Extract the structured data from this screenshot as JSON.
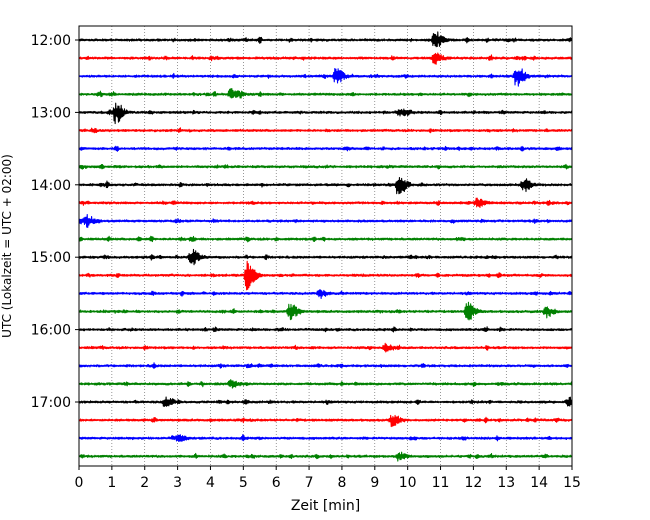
{
  "chart_data": {
    "type": "line",
    "title": "",
    "xlabel": "Zeit  [min]",
    "ylabel": "UTC (Lokalzeit = UTC + 02:00)",
    "xlim": [
      0,
      15
    ],
    "x_ticks": [
      "0",
      "1",
      "2",
      "3",
      "4",
      "5",
      "6",
      "7",
      "8",
      "9",
      "10",
      "11",
      "12",
      "13",
      "14",
      "15"
    ],
    "y_tick_labels": [
      "12:00",
      "13:00",
      "14:00",
      "15:00",
      "16:00",
      "17:00"
    ],
    "grid": "vertical dotted at each minute",
    "trace_colors": [
      "#000000",
      "#ff0000",
      "#0000ff",
      "#008000"
    ],
    "traces": [
      {
        "start": "12:00",
        "events": [
          [
            10.8,
            2.2
          ]
        ]
      },
      {
        "start": "12:15",
        "events": [
          [
            10.8,
            1.5
          ]
        ]
      },
      {
        "start": "12:30",
        "events": [
          [
            7.8,
            2.0
          ],
          [
            13.3,
            2.8
          ]
        ]
      },
      {
        "start": "12:45",
        "events": [
          [
            4.6,
            1.4
          ]
        ]
      },
      {
        "start": "13:00",
        "events": [
          [
            1.1,
            2.6
          ],
          [
            9.8,
            1.0
          ]
        ]
      },
      {
        "start": "13:15",
        "events": []
      },
      {
        "start": "13:30",
        "events": []
      },
      {
        "start": "13:45",
        "events": []
      },
      {
        "start": "14:00",
        "events": [
          [
            9.7,
            2.8
          ],
          [
            13.5,
            1.7
          ]
        ]
      },
      {
        "start": "14:15",
        "events": [
          [
            12.1,
            1.2
          ]
        ]
      },
      {
        "start": "14:30",
        "events": [
          [
            0.2,
            1.4
          ]
        ]
      },
      {
        "start": "14:45",
        "events": []
      },
      {
        "start": "15:00",
        "events": [
          [
            3.4,
            2.0
          ]
        ]
      },
      {
        "start": "15:15",
        "events": [
          [
            5.1,
            3.4
          ]
        ]
      },
      {
        "start": "15:30",
        "events": [
          [
            7.3,
            0.9
          ]
        ]
      },
      {
        "start": "15:45",
        "events": [
          [
            6.4,
            2.0
          ],
          [
            11.8,
            2.2
          ],
          [
            14.2,
            1.4
          ]
        ]
      },
      {
        "start": "16:00",
        "events": []
      },
      {
        "start": "16:15",
        "events": [
          [
            9.3,
            0.9
          ]
        ]
      },
      {
        "start": "16:30",
        "events": []
      },
      {
        "start": "16:45",
        "events": [
          [
            4.6,
            0.9
          ]
        ]
      },
      {
        "start": "17:00",
        "events": [
          [
            2.6,
            1.1
          ],
          [
            14.9,
            1.1
          ]
        ]
      },
      {
        "start": "17:15",
        "events": [
          [
            9.5,
            1.4
          ]
        ]
      },
      {
        "start": "17:30",
        "events": [
          [
            3.0,
            0.8
          ]
        ]
      },
      {
        "start": "17:45",
        "events": [
          [
            9.7,
            1.0
          ]
        ]
      }
    ]
  }
}
